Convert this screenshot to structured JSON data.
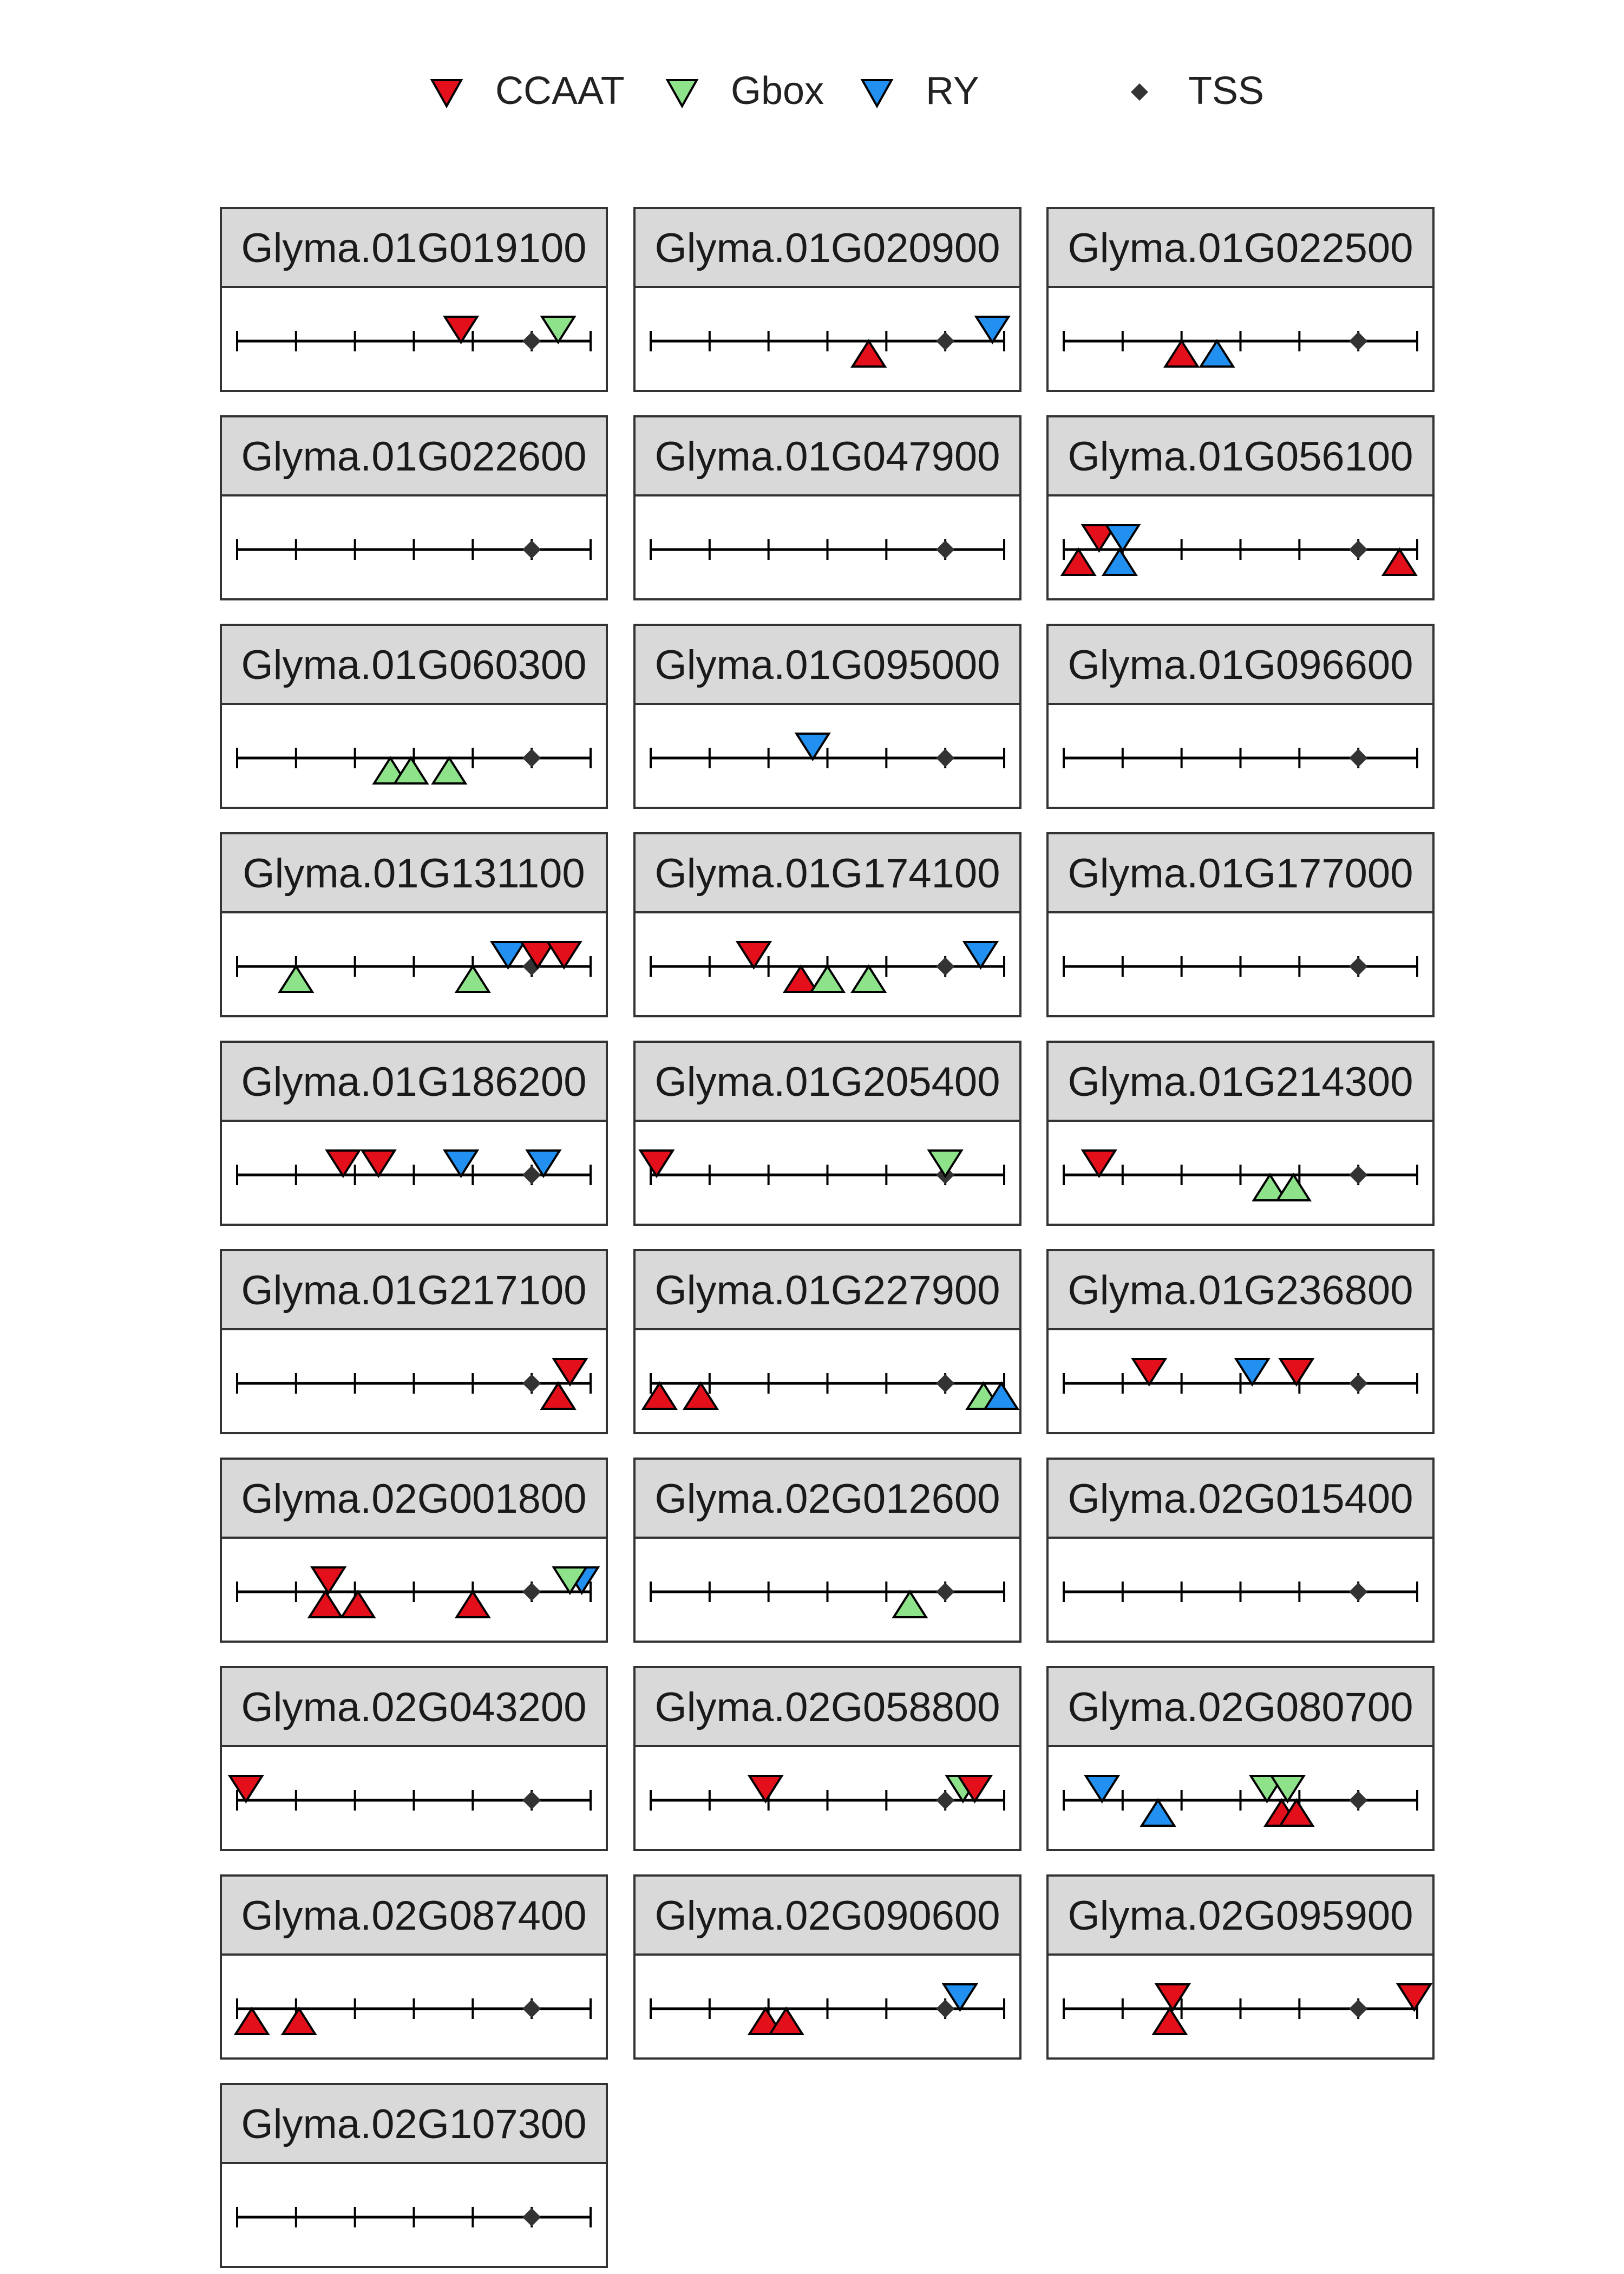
{
  "legend": {
    "items": [
      {
        "name": "CCAAT",
        "color": "#e3101c",
        "shape": "triangle-down"
      },
      {
        "name": "Gbox",
        "color": "#8ee38a",
        "shape": "triangle-down"
      },
      {
        "name": "RY",
        "color": "#2190f0",
        "shape": "triangle-down"
      },
      {
        "name": "TSS",
        "color": "#333333",
        "shape": "diamond"
      }
    ]
  },
  "chart_data": {
    "type": "scatter",
    "facet_layout": "wrap-3-columns",
    "x_range": [
      0,
      6
    ],
    "tick_positions": [
      0,
      1,
      2,
      3,
      4,
      5,
      6
    ],
    "tss_position": 5,
    "strands": {
      "down": "above axis",
      "up": "below axis"
    },
    "panels": [
      {
        "gene": "Glyma.01G019100",
        "motifs": [
          {
            "type": "CCAAT",
            "x": 3.8,
            "dir": "down"
          },
          {
            "type": "Gbox",
            "x": 5.45,
            "dir": "down"
          }
        ]
      },
      {
        "gene": "Glyma.01G020900",
        "motifs": [
          {
            "type": "CCAAT",
            "x": 3.7,
            "dir": "up"
          },
          {
            "type": "RY",
            "x": 5.8,
            "dir": "down"
          }
        ]
      },
      {
        "gene": "Glyma.01G022500",
        "motifs": [
          {
            "type": "CCAAT",
            "x": 2.0,
            "dir": "up"
          },
          {
            "type": "RY",
            "x": 2.6,
            "dir": "up"
          }
        ]
      },
      {
        "gene": "Glyma.01G022600",
        "motifs": []
      },
      {
        "gene": "Glyma.01G047900",
        "motifs": []
      },
      {
        "gene": "Glyma.01G056100",
        "motifs": [
          {
            "type": "CCAAT",
            "x": 0.6,
            "dir": "down"
          },
          {
            "type": "RY",
            "x": 1.0,
            "dir": "down"
          },
          {
            "type": "CCAAT",
            "x": 0.25,
            "dir": "up"
          },
          {
            "type": "RY",
            "x": 0.95,
            "dir": "up"
          },
          {
            "type": "CCAAT",
            "x": 5.7,
            "dir": "up"
          }
        ]
      },
      {
        "gene": "Glyma.01G060300",
        "motifs": [
          {
            "type": "Gbox",
            "x": 2.6,
            "dir": "up"
          },
          {
            "type": "Gbox",
            "x": 2.95,
            "dir": "up"
          },
          {
            "type": "Gbox",
            "x": 3.6,
            "dir": "up"
          }
        ]
      },
      {
        "gene": "Glyma.01G095000",
        "motifs": [
          {
            "type": "RY",
            "x": 2.75,
            "dir": "down"
          }
        ]
      },
      {
        "gene": "Glyma.01G096600",
        "motifs": []
      },
      {
        "gene": "Glyma.01G131100",
        "motifs": [
          {
            "type": "Gbox",
            "x": 1.0,
            "dir": "up"
          },
          {
            "type": "Gbox",
            "x": 4.0,
            "dir": "up"
          },
          {
            "type": "RY",
            "x": 4.6,
            "dir": "down"
          },
          {
            "type": "CCAAT",
            "x": 5.1,
            "dir": "down"
          },
          {
            "type": "CCAAT",
            "x": 5.55,
            "dir": "down"
          }
        ]
      },
      {
        "gene": "Glyma.01G174100",
        "motifs": [
          {
            "type": "CCAAT",
            "x": 1.75,
            "dir": "down"
          },
          {
            "type": "CCAAT",
            "x": 2.55,
            "dir": "up"
          },
          {
            "type": "Gbox",
            "x": 3.0,
            "dir": "up"
          },
          {
            "type": "Gbox",
            "x": 3.7,
            "dir": "up"
          },
          {
            "type": "RY",
            "x": 5.6,
            "dir": "down"
          }
        ]
      },
      {
        "gene": "Glyma.01G177000",
        "motifs": []
      },
      {
        "gene": "Glyma.01G186200",
        "motifs": [
          {
            "type": "CCAAT",
            "x": 1.8,
            "dir": "down"
          },
          {
            "type": "CCAAT",
            "x": 2.4,
            "dir": "down"
          },
          {
            "type": "RY",
            "x": 3.8,
            "dir": "down"
          },
          {
            "type": "RY",
            "x": 5.2,
            "dir": "down"
          }
        ]
      },
      {
        "gene": "Glyma.01G205400",
        "motifs": [
          {
            "type": "CCAAT",
            "x": 0.1,
            "dir": "down"
          },
          {
            "type": "Gbox",
            "x": 5.0,
            "dir": "down"
          }
        ]
      },
      {
        "gene": "Glyma.01G214300",
        "motifs": [
          {
            "type": "CCAAT",
            "x": 0.6,
            "dir": "down"
          },
          {
            "type": "Gbox",
            "x": 3.5,
            "dir": "up"
          },
          {
            "type": "Gbox",
            "x": 3.9,
            "dir": "up"
          }
        ]
      },
      {
        "gene": "Glyma.01G217100",
        "motifs": [
          {
            "type": "CCAAT",
            "x": 5.65,
            "dir": "down"
          },
          {
            "type": "CCAAT",
            "x": 5.45,
            "dir": "up"
          }
        ]
      },
      {
        "gene": "Glyma.01G227900",
        "motifs": [
          {
            "type": "CCAAT",
            "x": 0.15,
            "dir": "up"
          },
          {
            "type": "CCAAT",
            "x": 0.85,
            "dir": "up"
          },
          {
            "type": "Gbox",
            "x": 5.65,
            "dir": "up"
          },
          {
            "type": "RY",
            "x": 5.95,
            "dir": "up"
          }
        ]
      },
      {
        "gene": "Glyma.01G236800",
        "motifs": [
          {
            "type": "CCAAT",
            "x": 1.45,
            "dir": "down"
          },
          {
            "type": "RY",
            "x": 3.2,
            "dir": "down"
          },
          {
            "type": "CCAAT",
            "x": 3.95,
            "dir": "down"
          }
        ]
      },
      {
        "gene": "Glyma.02G001800",
        "motifs": [
          {
            "type": "CCAAT",
            "x": 1.55,
            "dir": "down"
          },
          {
            "type": "CCAAT",
            "x": 1.5,
            "dir": "up"
          },
          {
            "type": "CCAAT",
            "x": 2.05,
            "dir": "up"
          },
          {
            "type": "CCAAT",
            "x": 4.0,
            "dir": "up"
          },
          {
            "type": "RY",
            "x": 5.85,
            "dir": "down"
          },
          {
            "type": "Gbox",
            "x": 5.65,
            "dir": "down"
          }
        ]
      },
      {
        "gene": "Glyma.02G012600",
        "motifs": [
          {
            "type": "Gbox",
            "x": 4.4,
            "dir": "up"
          }
        ]
      },
      {
        "gene": "Glyma.02G015400",
        "motifs": []
      },
      {
        "gene": "Glyma.02G043200",
        "motifs": [
          {
            "type": "CCAAT",
            "x": 0.15,
            "dir": "down"
          }
        ]
      },
      {
        "gene": "Glyma.02G058800",
        "motifs": [
          {
            "type": "CCAAT",
            "x": 1.95,
            "dir": "down"
          },
          {
            "type": "Gbox",
            "x": 5.3,
            "dir": "down"
          },
          {
            "type": "CCAAT",
            "x": 5.5,
            "dir": "down"
          }
        ]
      },
      {
        "gene": "Glyma.02G080700",
        "motifs": [
          {
            "type": "RY",
            "x": 0.65,
            "dir": "down"
          },
          {
            "type": "RY",
            "x": 1.6,
            "dir": "up"
          },
          {
            "type": "Gbox",
            "x": 3.45,
            "dir": "down"
          },
          {
            "type": "Gbox",
            "x": 3.8,
            "dir": "down"
          },
          {
            "type": "CCAAT",
            "x": 3.7,
            "dir": "up"
          },
          {
            "type": "CCAAT",
            "x": 3.95,
            "dir": "up"
          }
        ]
      },
      {
        "gene": "Glyma.02G087400",
        "motifs": [
          {
            "type": "CCAAT",
            "x": 0.25,
            "dir": "up"
          },
          {
            "type": "CCAAT",
            "x": 1.05,
            "dir": "up"
          }
        ]
      },
      {
        "gene": "Glyma.02G090600",
        "motifs": [
          {
            "type": "CCAAT",
            "x": 1.95,
            "dir": "up"
          },
          {
            "type": "CCAAT",
            "x": 2.3,
            "dir": "up"
          },
          {
            "type": "RY",
            "x": 5.25,
            "dir": "down"
          }
        ]
      },
      {
        "gene": "Glyma.02G095900",
        "motifs": [
          {
            "type": "CCAAT",
            "x": 1.85,
            "dir": "down"
          },
          {
            "type": "CCAAT",
            "x": 1.8,
            "dir": "up"
          },
          {
            "type": "CCAAT",
            "x": 5.95,
            "dir": "down"
          }
        ]
      },
      {
        "gene": "Glyma.02G107300",
        "motifs": []
      }
    ]
  }
}
